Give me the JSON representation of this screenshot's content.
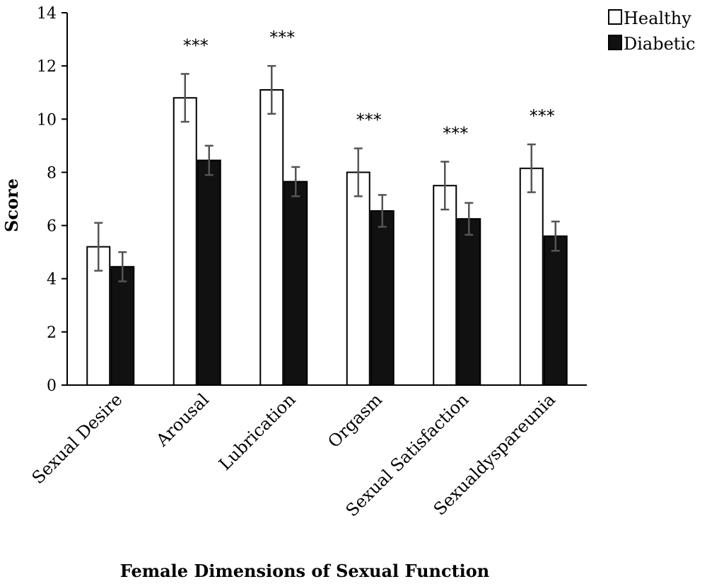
{
  "chart_data": {
    "type": "bar",
    "xlabel": "Female Dimensions of Sexual Function",
    "ylabel": "Score",
    "ylim": [
      0,
      14
    ],
    "yticks": [
      0,
      2,
      4,
      6,
      8,
      10,
      12,
      14
    ],
    "categories": [
      "Sexual Desire",
      "Arousal",
      "Lubrication",
      "Orgasm",
      "Sexual Satisfaction",
      "Sexualdyspareunia"
    ],
    "series": [
      {
        "name": "Healthy",
        "color": "#ffffff",
        "values": [
          5.2,
          10.8,
          11.1,
          8.0,
          7.5,
          8.15
        ],
        "errors": [
          0.9,
          0.9,
          0.9,
          0.9,
          0.9,
          0.9
        ]
      },
      {
        "name": "Diabetic",
        "color": "#111111",
        "values": [
          4.45,
          8.45,
          7.65,
          6.55,
          6.25,
          5.6
        ],
        "errors": [
          0.55,
          0.55,
          0.55,
          0.6,
          0.6,
          0.55
        ]
      }
    ],
    "significance": [
      "",
      "***",
      "***",
      "***",
      "***",
      "***"
    ],
    "legend_position": "top-right",
    "grid": false
  }
}
